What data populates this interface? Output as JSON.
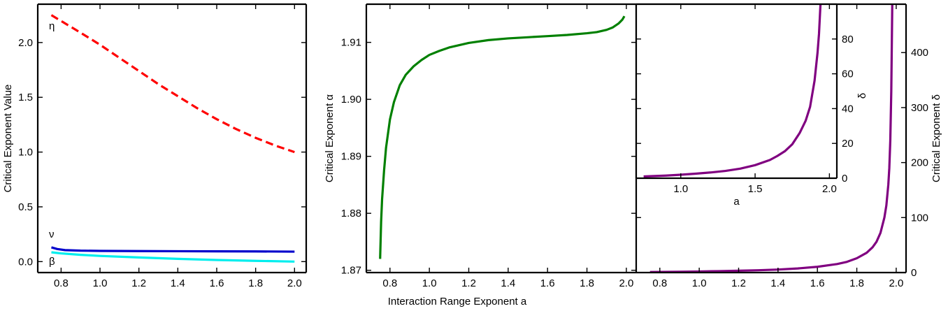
{
  "shared_xlabel": "Interaction Range Exponent a",
  "chart_data": [
    {
      "type": "line",
      "ylabel": "Critical Exponent Value",
      "xlim": [
        0.68,
        2.06
      ],
      "ylim": [
        -0.1,
        2.35
      ],
      "xticks": [
        0.8,
        1.0,
        1.2,
        1.4,
        1.6,
        1.8,
        2.0
      ],
      "xtick_labels": [
        "0.8",
        "1.0",
        "1.2",
        "1.4",
        "1.6",
        "1.8",
        "2.0"
      ],
      "yticks": [
        0.0,
        0.5,
        1.0,
        1.5,
        2.0
      ],
      "ytick_labels": [
        "0.0",
        "0.5",
        "1.0",
        "1.5",
        "2.0"
      ],
      "series": [
        {
          "label": "η",
          "color": "#ff0000",
          "dash": true,
          "x": [
            0.75,
            0.9,
            1.0,
            1.1,
            1.2,
            1.3,
            1.4,
            1.5,
            1.6,
            1.7,
            1.8,
            1.9,
            2.0
          ],
          "y": [
            2.25,
            2.09,
            1.98,
            1.86,
            1.74,
            1.62,
            1.51,
            1.4,
            1.3,
            1.21,
            1.13,
            1.06,
            1.0
          ]
        },
        {
          "label": "ν",
          "color": "#0000cc",
          "dash": false,
          "x": [
            0.75,
            0.78,
            0.82,
            0.9,
            1.0,
            1.2,
            1.4,
            1.6,
            1.8,
            2.0
          ],
          "y": [
            0.13,
            0.115,
            0.105,
            0.1,
            0.098,
            0.096,
            0.095,
            0.094,
            0.093,
            0.091
          ]
        },
        {
          "label": "β",
          "color": "#00eeee",
          "dash": false,
          "x": [
            0.75,
            0.8,
            0.9,
            1.0,
            1.2,
            1.4,
            1.6,
            1.8,
            2.0
          ],
          "y": [
            0.085,
            0.075,
            0.062,
            0.052,
            0.038,
            0.025,
            0.015,
            0.007,
            0.0
          ]
        }
      ]
    },
    {
      "type": "line",
      "ylabel": "Critical Exponent α",
      "xlim": [
        0.68,
        2.05
      ],
      "ylim": [
        1.8696,
        1.9167
      ],
      "xticks": [
        0.8,
        1.0,
        1.2,
        1.4,
        1.6,
        1.8,
        2.0
      ],
      "xtick_labels": [
        "0.8",
        "1.0",
        "1.2",
        "1.4",
        "1.6",
        "1.8",
        "2.0"
      ],
      "yticks": [
        1.87,
        1.88,
        1.89,
        1.9,
        1.91
      ],
      "ytick_labels": [
        "1.87",
        "1.88",
        "1.89",
        "1.90",
        "1.91"
      ],
      "series": [
        {
          "color": "#008000",
          "x": [
            0.75,
            0.755,
            0.76,
            0.77,
            0.78,
            0.8,
            0.82,
            0.85,
            0.88,
            0.92,
            0.96,
            1.0,
            1.05,
            1.1,
            1.2,
            1.3,
            1.4,
            1.5,
            1.6,
            1.7,
            1.8,
            1.85,
            1.9,
            1.93,
            1.96,
            1.98,
            1.99
          ],
          "y": [
            1.872,
            1.8785,
            1.8825,
            1.8875,
            1.8915,
            1.8965,
            1.8995,
            1.9025,
            1.9043,
            1.9058,
            1.9069,
            1.9078,
            1.9085,
            1.9091,
            1.9099,
            1.9104,
            1.9107,
            1.9109,
            1.9111,
            1.9113,
            1.9116,
            1.9118,
            1.9122,
            1.9126,
            1.9133,
            1.914,
            1.9146
          ]
        }
      ]
    },
    {
      "type": "line",
      "ylabel": "Critical Exponent δ",
      "xlim": [
        0.68,
        2.05
      ],
      "ylim": [
        0,
        488
      ],
      "xticks": [
        0.8,
        1.0,
        1.2,
        1.4,
        1.6,
        1.8,
        2.0
      ],
      "xtick_labels": [
        "0.8",
        "1.0",
        "1.2",
        "1.4",
        "1.6",
        "1.8",
        "2.0"
      ],
      "yticks": [
        0,
        100,
        200,
        300,
        400
      ],
      "ytick_labels": [
        "0",
        "100",
        "200",
        "300",
        "400"
      ],
      "series": [
        {
          "color": "#800080",
          "x": [
            0.75,
            0.9,
            1.0,
            1.1,
            1.2,
            1.3,
            1.4,
            1.5,
            1.6,
            1.7,
            1.75,
            1.8,
            1.85,
            1.88,
            1.9,
            1.92,
            1.94,
            1.95,
            1.96,
            1.965,
            1.97,
            1.975,
            1.98
          ],
          "y": [
            1,
            1.5,
            2,
            2.6,
            3.3,
            4.2,
            5.5,
            7.5,
            10.5,
            15.5,
            19.5,
            26,
            36,
            46,
            56,
            72,
            100,
            122,
            160,
            190,
            240,
            330,
            488
          ]
        }
      ]
    },
    {
      "type": "line",
      "inset": true,
      "ylabel": "δ",
      "xlabel": "a",
      "xlim": [
        0.7,
        2.05
      ],
      "ylim": [
        0,
        100
      ],
      "xticks": [
        1.0,
        1.5,
        2.0
      ],
      "xtick_labels": [
        "1.0",
        "1.5",
        "2.0"
      ],
      "yticks": [
        0,
        20,
        40,
        60,
        80
      ],
      "ytick_labels": [
        "0",
        "20",
        "40",
        "60",
        "80"
      ],
      "series": [
        {
          "color": "#800080",
          "x": [
            0.75,
            0.9,
            1.0,
            1.1,
            1.2,
            1.3,
            1.4,
            1.5,
            1.6,
            1.65,
            1.7,
            1.75,
            1.8,
            1.84,
            1.87,
            1.9,
            1.92,
            1.93,
            1.94,
            1.945
          ],
          "y": [
            1,
            1.5,
            2,
            2.6,
            3.3,
            4.2,
            5.5,
            7.5,
            10.5,
            12.8,
            15.5,
            19.5,
            26,
            33,
            41,
            56,
            72,
            83,
            100,
            104
          ]
        }
      ]
    }
  ]
}
